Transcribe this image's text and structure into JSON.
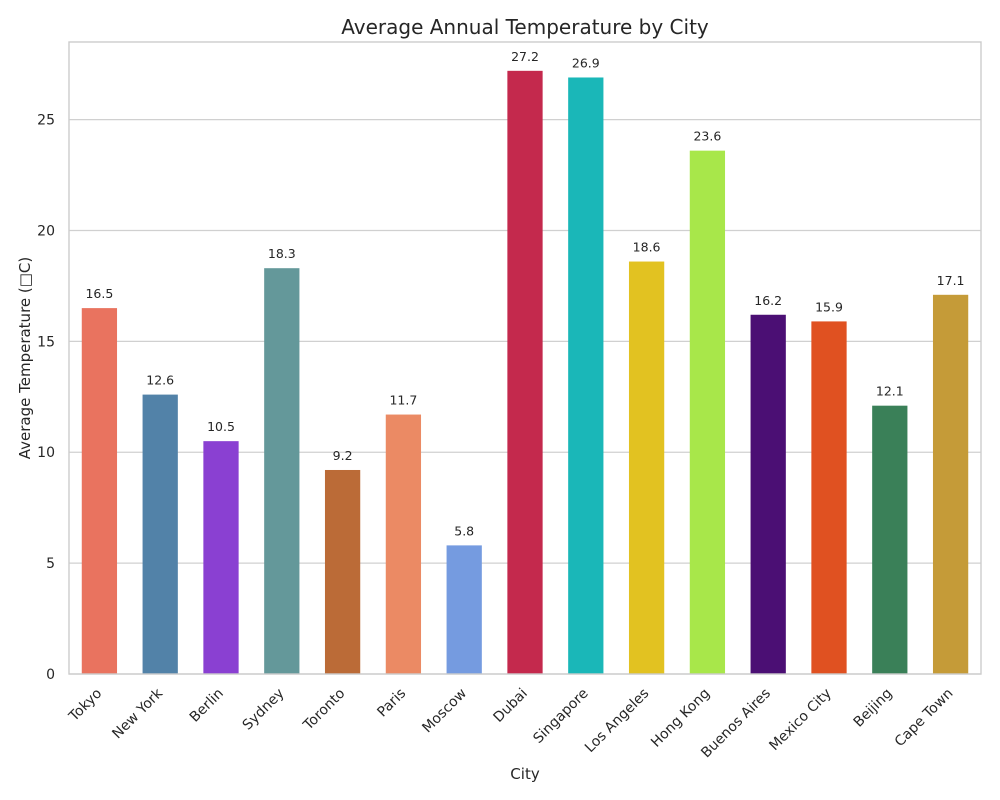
{
  "chart_data": {
    "type": "bar",
    "title": "Average Annual Temperature by City",
    "xlabel": "City",
    "ylabel": "Average Temperature (□C)",
    "ylim": [
      0,
      28.5
    ],
    "yticks": [
      0,
      5,
      10,
      15,
      20,
      25
    ],
    "grid": "horizontal",
    "categories": [
      "Tokyo",
      "New York",
      "Berlin",
      "Sydney",
      "Toronto",
      "Paris",
      "Moscow",
      "Dubai",
      "Singapore",
      "Los Angeles",
      "Hong Kong",
      "Buenos Aires",
      "Mexico City",
      "Beijing",
      "Cape Town"
    ],
    "values": [
      16.5,
      12.6,
      10.5,
      18.3,
      9.2,
      11.7,
      5.8,
      27.2,
      26.9,
      18.6,
      23.6,
      16.2,
      15.9,
      12.1,
      17.1
    ],
    "data_labels": [
      "16.5",
      "12.6",
      "10.5",
      "18.3",
      "9.2",
      "11.7",
      "5.8",
      "27.2",
      "26.9",
      "18.6",
      "23.6",
      "16.2",
      "15.9",
      "12.1",
      "17.1"
    ],
    "colors": [
      "#e9735f",
      "#5282a8",
      "#8a40d2",
      "#64989a",
      "#bb6b37",
      "#eb8a64",
      "#759be0",
      "#c4294d",
      "#1ab7b8",
      "#e2c221",
      "#a8e74a",
      "#4b0f74",
      "#e05121",
      "#3a8058",
      "#c59b38"
    ]
  }
}
